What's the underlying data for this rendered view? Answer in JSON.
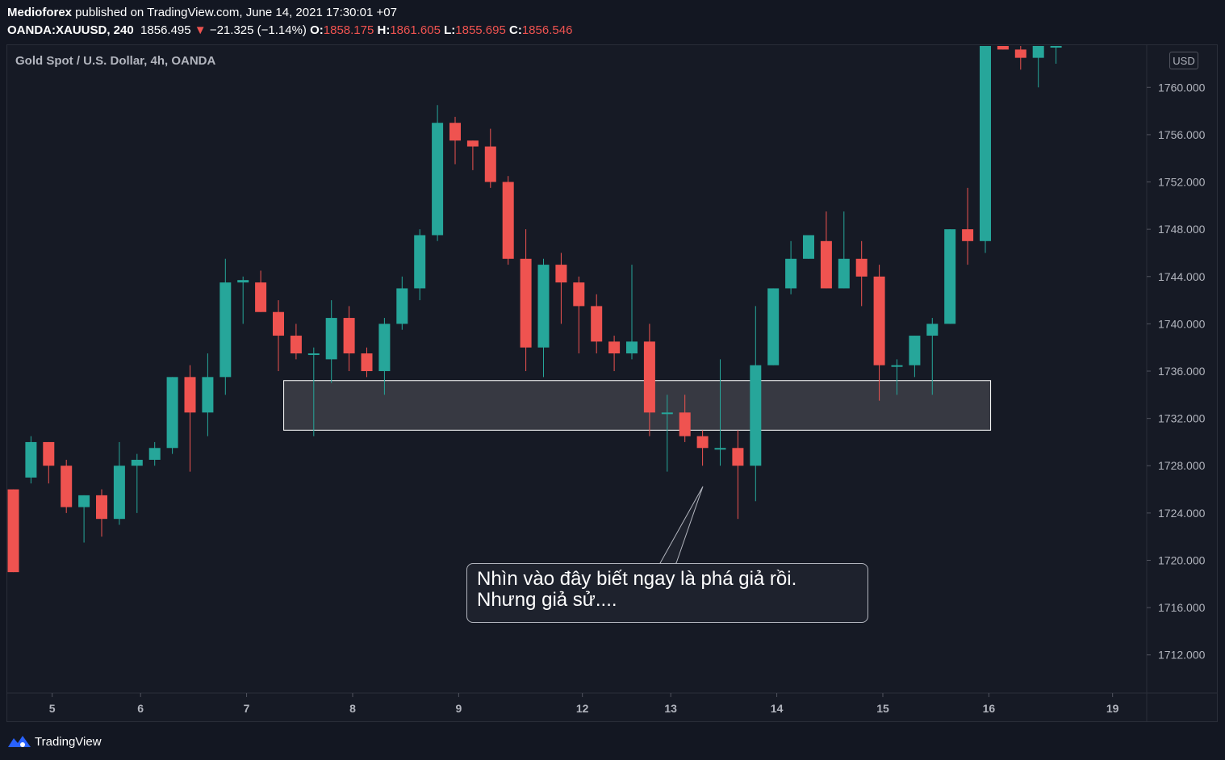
{
  "header": {
    "publisher": "Medioforex",
    "published_text": " published on TradingView.com, June 14, 2021 17:30:01 +07",
    "symbol": "OANDA:XAUUSD, 240",
    "last": "1856.495",
    "change_arrow": "▼",
    "change": "−21.325 (−1.14%)",
    "o_label": "O:",
    "o_value": "1858.175",
    "h_label": "H:",
    "h_value": "1861.605",
    "l_label": "L:",
    "l_value": "1855.695",
    "c_label": "C:",
    "c_value": "1856.546"
  },
  "plot_title": "Gold Spot / U.S. Dollar, 4h, OANDA",
  "currency_badge": "USD",
  "callout": {
    "line1": "Nhìn vào đây biết ngay là phá giả rồi.",
    "line2": "Nhưng giả sử...."
  },
  "footer": {
    "brand": "TradingView",
    "logo_icon": "tradingview-logo-icon"
  },
  "colors": {
    "up": "#26a69a",
    "down": "#ef5350",
    "background": "#161a25",
    "zone": "#3d4048"
  },
  "chart_data": {
    "type": "candlestick",
    "title": "Gold Spot / U.S. Dollar, 4h, OANDA",
    "ylim": [
      1707,
      1763.5
    ],
    "yticks": [
      "1760.000",
      "1756.000",
      "1752.000",
      "1748.000",
      "1744.000",
      "1740.000",
      "1736.000",
      "1732.000",
      "1728.000",
      "1724.000",
      "1720.000",
      "1716.000",
      "1712.000"
    ],
    "xticks": [
      {
        "label": "5",
        "bar": 2.2
      },
      {
        "label": "6",
        "bar": 7.2
      },
      {
        "label": "7",
        "bar": 13.2
      },
      {
        "label": "8",
        "bar": 19.2
      },
      {
        "label": "9",
        "bar": 25.2
      },
      {
        "label": "12",
        "bar": 32.2
      },
      {
        "label": "13",
        "bar": 37.2
      },
      {
        "label": "14",
        "bar": 43.2
      },
      {
        "label": "15",
        "bar": 49.2
      },
      {
        "label": "16",
        "bar": 55.2
      },
      {
        "label": "19",
        "bar": 62.2
      }
    ],
    "zone": {
      "top": 1735.2,
      "bottom": 1731.0,
      "from_bar": 15.3,
      "to_bar": 55.3
    },
    "candles": [
      [
        1726,
        1726,
        1719,
        1719
      ],
      [
        1727,
        1730.5,
        1726.5,
        1730
      ],
      [
        1730,
        1730,
        1726.5,
        1728
      ],
      [
        1728,
        1728.5,
        1724,
        1724.5
      ],
      [
        1724.5,
        1725.5,
        1721.5,
        1725.5
      ],
      [
        1725.5,
        1726,
        1722,
        1723.5
      ],
      [
        1723.5,
        1730,
        1723,
        1728
      ],
      [
        1728,
        1729,
        1724,
        1728.5
      ],
      [
        1728.5,
        1730,
        1728,
        1729.5
      ],
      [
        1729.5,
        1735.5,
        1729,
        1735.5
      ],
      [
        1735.5,
        1736.5,
        1727.5,
        1732.5
      ],
      [
        1732.5,
        1737.5,
        1730.5,
        1735.5
      ],
      [
        1735.5,
        1745.5,
        1734,
        1743.5
      ],
      [
        1743.5,
        1744,
        1740,
        1743.7
      ],
      [
        1743.5,
        1744.5,
        1741,
        1741
      ],
      [
        1741,
        1742,
        1736,
        1739
      ],
      [
        1739,
        1740,
        1737,
        1737.5
      ],
      [
        1737.5,
        1738,
        1730.5,
        1737.5
      ],
      [
        1737,
        1742,
        1735,
        1740.5
      ],
      [
        1740.5,
        1741.5,
        1736,
        1737.5
      ],
      [
        1737.5,
        1738,
        1735.5,
        1736
      ],
      [
        1736,
        1740.5,
        1734,
        1740
      ],
      [
        1740,
        1744,
        1739.5,
        1743
      ],
      [
        1743,
        1748,
        1742,
        1747.5
      ],
      [
        1747.5,
        1758.5,
        1747,
        1757
      ],
      [
        1757,
        1757.5,
        1753.5,
        1755.5
      ],
      [
        1755.5,
        1755.5,
        1753,
        1755
      ],
      [
        1755,
        1756.5,
        1751.5,
        1752
      ],
      [
        1752,
        1752.5,
        1745,
        1745.5
      ],
      [
        1745.5,
        1748,
        1736,
        1738
      ],
      [
        1738,
        1745.5,
        1735.5,
        1745
      ],
      [
        1745,
        1746,
        1740,
        1743.5
      ],
      [
        1743.5,
        1744,
        1737.5,
        1741.5
      ],
      [
        1741.5,
        1742.5,
        1737.5,
        1738.5
      ],
      [
        1738.5,
        1739,
        1736,
        1737.5
      ],
      [
        1737.5,
        1745,
        1737,
        1738.5
      ],
      [
        1738.5,
        1740,
        1730.5,
        1732.5
      ],
      [
        1732.5,
        1734,
        1727.5,
        1732.5
      ],
      [
        1732.5,
        1734,
        1730,
        1730.5
      ],
      [
        1730.5,
        1731,
        1728,
        1729.5
      ],
      [
        1729.5,
        1737,
        1728,
        1729.5
      ],
      [
        1729.5,
        1731,
        1723.5,
        1728
      ],
      [
        1728,
        1741.5,
        1725,
        1736.5
      ],
      [
        1736.5,
        1743,
        1736.5,
        1743
      ],
      [
        1743,
        1747,
        1742.5,
        1745.5
      ],
      [
        1745.5,
        1747.5,
        1745.5,
        1747.5
      ],
      [
        1747,
        1749.5,
        1743,
        1743
      ],
      [
        1743,
        1749.5,
        1743,
        1745.5
      ],
      [
        1745.5,
        1747,
        1741.5,
        1744
      ],
      [
        1744,
        1745,
        1733.5,
        1736.5
      ],
      [
        1736.5,
        1737,
        1734,
        1736.5
      ],
      [
        1736.5,
        1739,
        1735.5,
        1739
      ],
      [
        1739,
        1740.5,
        1734,
        1740
      ],
      [
        1740,
        1748,
        1740,
        1748
      ],
      [
        1748,
        1751.5,
        1745,
        1747
      ],
      [
        1747,
        1763.5,
        1746,
        1763.5
      ],
      [
        1763.5,
        1763.5,
        1763.2,
        1763.2
      ],
      [
        1763.2,
        1763.5,
        1761.5,
        1762.5
      ],
      [
        1762.5,
        1763.5,
        1760,
        1763.5
      ],
      [
        1763.5,
        1763.5,
        1762,
        1763.5
      ]
    ]
  }
}
